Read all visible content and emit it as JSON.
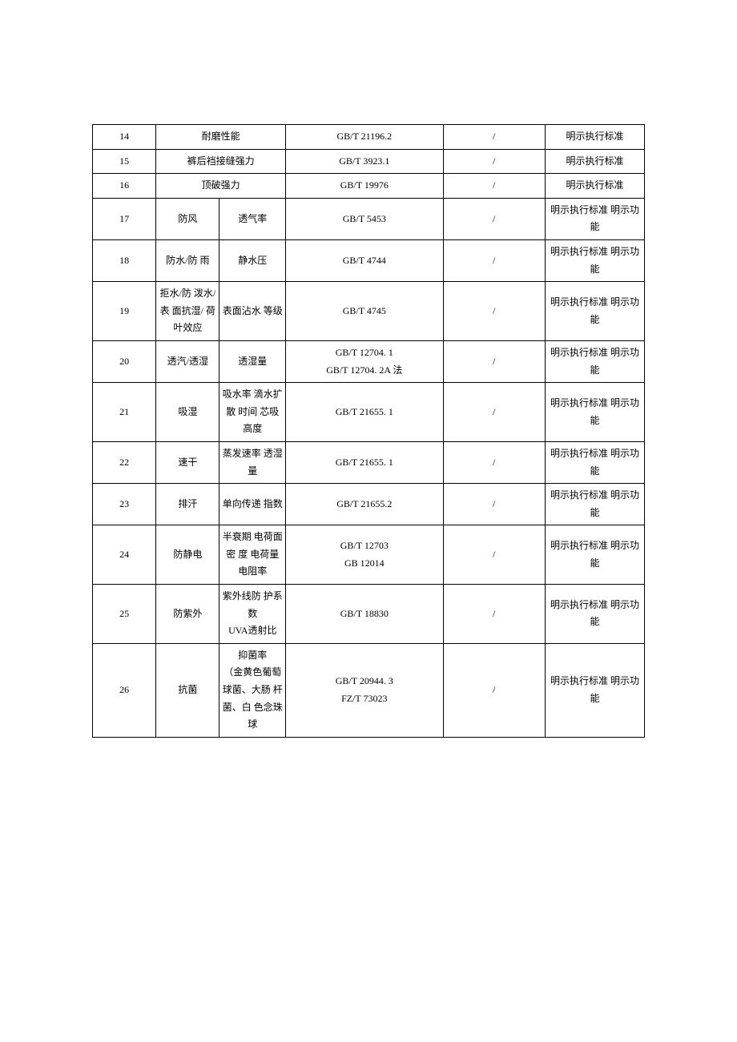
{
  "table": {
    "border_color": "#000000",
    "background_color": "#ffffff",
    "text_color": "#000000",
    "font_size_pt": 9,
    "column_widths_pct": [
      11.5,
      11.5,
      12,
      28.5,
      18.5,
      18
    ],
    "rows": [
      {
        "no": "14",
        "b_colspan": 2,
        "b": "耐磨性能",
        "d": "GB/T 21196.2",
        "e": "/",
        "f": "明示执行标准"
      },
      {
        "no": "15",
        "b_colspan": 2,
        "b": "裤后裆接缝强力",
        "d": "GB/T 3923.1",
        "e": "/",
        "f": "明示执行标准"
      },
      {
        "no": "16",
        "b_colspan": 2,
        "b": "顶破强力",
        "d": "GB/T 19976",
        "e": "/",
        "f": "明示执行标准"
      },
      {
        "no": "17",
        "b": "防风",
        "c": "透气率",
        "d": "GB/T 5453",
        "e": "/",
        "f": "明示执行标准 明示功能"
      },
      {
        "no": "18",
        "b": "防水/防 雨",
        "c": "静水压",
        "d": "GB/T 4744",
        "e": "/",
        "f": "明示执行标准 明示功能"
      },
      {
        "no": "19",
        "b": "拒水/防 泼水/表 面抗湿/ 荷叶效应",
        "c": "表面沾水 等级",
        "d": "GB/T 4745",
        "e": "/",
        "f": "明示执行标准 明示功能"
      },
      {
        "no": "20",
        "b": "透汽/透湿",
        "c": "透湿量",
        "d": "GB/T 12704. 1\nGB/T 12704. 2A 法",
        "e": "/",
        "f": "明示执行标准 明示功能"
      },
      {
        "no": "21",
        "b": "吸湿",
        "c": "吸水率 滴水扩散 时间 芯吸高度",
        "d": "GB/T 21655. 1",
        "e": "/",
        "f": "明示执行标准 明示功能"
      },
      {
        "no": "22",
        "b": "速干",
        "c": "蒸发速率 透湿量",
        "d": "GB/T 21655. 1",
        "e": "/",
        "f": "明示执行标准 明示功能"
      },
      {
        "no": "23",
        "b": "排汗",
        "c": "单向传递 指数",
        "d": "GB/T 21655.2",
        "e": "/",
        "f": "明示执行标准 明示功能"
      },
      {
        "no": "24",
        "b": "防静电",
        "c": "半衰期 电荷面密 度 电荷量\n电阻率",
        "d": "GB/T 12703\nGB 12014",
        "e": "/",
        "f": "明示执行标准 明示功能"
      },
      {
        "no": "25",
        "b": "防紫外",
        "c": "紫外线防 护系数\nUVA透射比",
        "d": "GB/T 18830",
        "e": "/",
        "f": "明示执行标准 明示功能"
      },
      {
        "no": "26",
        "b": "抗菌",
        "c": "抑菌率\n（金黄色葡萄球菌、大肠 杆菌、白 色念珠球",
        "d": "GB/T 20944. 3\nFZ/T 73023",
        "e": "/",
        "f": "明示执行标准 明示功能"
      }
    ]
  }
}
